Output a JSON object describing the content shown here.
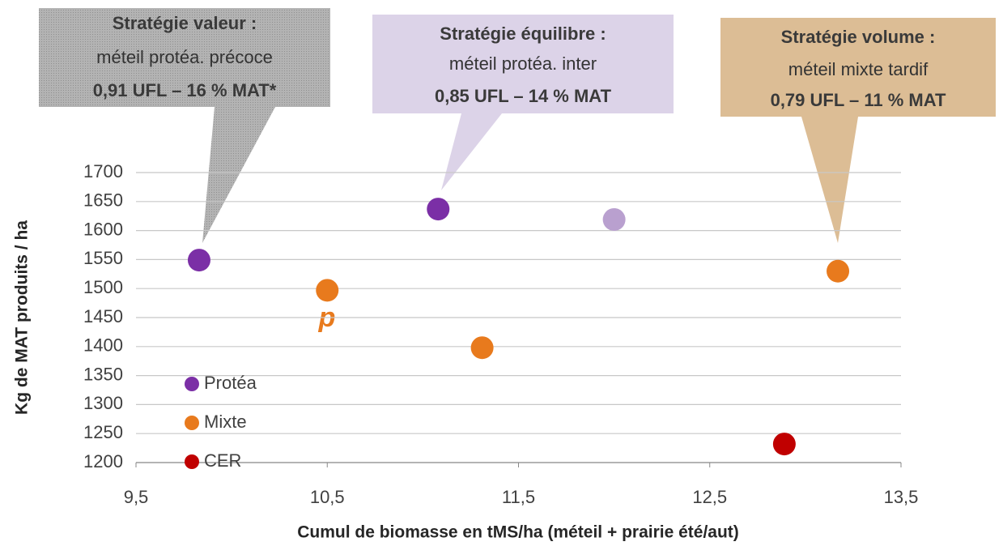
{
  "chart_data": {
    "type": "scatter",
    "x_label": "Cumul de biomasse en tMS/ha (méteil + prairie été/aut)",
    "y_label": "Kg de MAT produits / ha",
    "xlim": [
      9.5,
      13.5
    ],
    "xticks": [
      {
        "value": 9.5,
        "label": "9,5"
      },
      {
        "value": 10.5,
        "label": "10,5"
      },
      {
        "value": 11.5,
        "label": "11,5"
      },
      {
        "value": 12.5,
        "label": "12,5"
      },
      {
        "value": 13.5,
        "label": "13,5"
      }
    ],
    "ylim": [
      1200,
      1700
    ],
    "yticks": [
      1200,
      1250,
      1300,
      1350,
      1400,
      1450,
      1500,
      1550,
      1600,
      1650,
      1700
    ],
    "grid": true,
    "legend": "lower left",
    "series": [
      {
        "name": "Protéa",
        "color": "#7b2fa6",
        "colors": [
          "#7b2fa6",
          "#7b2fa6",
          "#b9a0cf"
        ],
        "x": [
          9.83,
          11.08,
          12.0
        ],
        "values": [
          1549,
          1637,
          1619
        ]
      },
      {
        "name": "Mixte",
        "color": "#e87a1d",
        "x": [
          10.5,
          11.31,
          13.17
        ],
        "values": [
          1497,
          1398,
          1530
        ]
      },
      {
        "name": "CER",
        "color": "#c00000",
        "x": [
          12.89
        ],
        "values": [
          1232
        ]
      }
    ],
    "annotation": "p",
    "callouts": [
      {
        "title": "Stratégie valeur :",
        "text": "méteil protéa. précoce",
        "value": "0,91 UFL – 16 % MAT*"
      },
      {
        "title": "Stratégie équilibre :",
        "text": "méteil protéa. inter",
        "value": "0,85 UFL – 14 % MAT"
      },
      {
        "title": "Stratégie volume  :",
        "text": "méteil mixte tardif",
        "value": "0,79 UFL – 11 % MAT"
      }
    ]
  }
}
